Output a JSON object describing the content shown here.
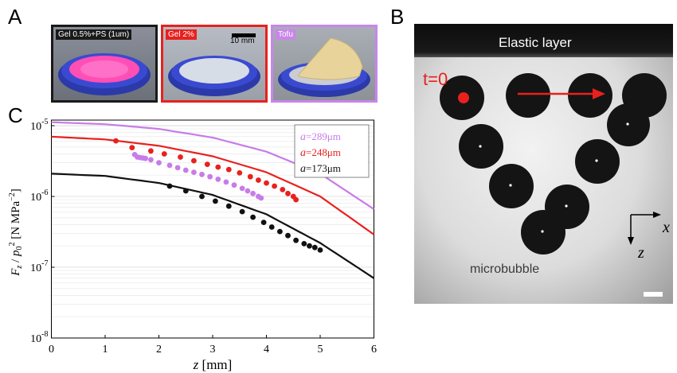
{
  "panels": {
    "a": "A",
    "b": "B",
    "c": "C"
  },
  "photos": [
    {
      "label": "Gel 0.5%+PS (1um)",
      "border": "#1a1a1a",
      "label_bg": "#1a1a1a"
    },
    {
      "label": "Gel 2%",
      "border": "#e8211e",
      "label_bg": "#e8211e",
      "scale": "10 mm"
    },
    {
      "label": "Tofu",
      "border": "#c985ea",
      "label_bg": "#c985ea"
    }
  ],
  "panel_b": {
    "elastic_layer": "Elastic layer",
    "t0": "t=0",
    "microbubble": "microbubble",
    "axis_x": "x",
    "axis_z": "z",
    "marker_color": "#e8211e"
  },
  "chart_data": {
    "type": "scatter",
    "xlabel": "z [mm]",
    "ylabel": "F_z / p_0^2 [N MPa^-2]",
    "xlim": [
      0,
      6
    ],
    "ylim": [
      1e-08,
      1.2e-05
    ],
    "yscale": "log",
    "xticks": [
      "0",
      "1",
      "2",
      "3",
      "4",
      "5",
      "6"
    ],
    "yticks": [
      "10-8",
      "10-7",
      "10-6",
      "10-5"
    ],
    "grid": "y-minor",
    "legend_position": "top-right",
    "series": [
      {
        "name": "a=289μm",
        "legend_label": "a",
        "legend_value": "=289μm",
        "color": "#c77ce8",
        "curve": [
          [
            0,
            1.12e-05
          ],
          [
            1,
            1.05e-05
          ],
          [
            2,
            9e-06
          ],
          [
            3,
            6.8e-06
          ],
          [
            4,
            4.3e-06
          ],
          [
            5,
            2.1e-06
          ],
          [
            6,
            6.6e-07
          ]
        ],
        "points": [
          [
            1.55,
            3.9e-06
          ],
          [
            1.6,
            3.6e-06
          ],
          [
            1.65,
            3.55e-06
          ],
          [
            1.7,
            3.5e-06
          ],
          [
            1.75,
            3.45e-06
          ],
          [
            1.85,
            3.3e-06
          ],
          [
            2.0,
            3e-06
          ],
          [
            2.2,
            2.75e-06
          ],
          [
            2.35,
            2.55e-06
          ],
          [
            2.5,
            2.35e-06
          ],
          [
            2.65,
            2.2e-06
          ],
          [
            2.8,
            2.05e-06
          ],
          [
            2.95,
            1.9e-06
          ],
          [
            3.1,
            1.75e-06
          ],
          [
            3.25,
            1.6e-06
          ],
          [
            3.4,
            1.45e-06
          ],
          [
            3.55,
            1.3e-06
          ],
          [
            3.65,
            1.2e-06
          ],
          [
            3.75,
            1.1e-06
          ],
          [
            3.85,
            1e-06
          ],
          [
            3.9,
            9.5e-07
          ]
        ]
      },
      {
        "name": "a=248μm",
        "legend_label": "a",
        "legend_value": "=248μm",
        "color": "#e8211e",
        "curve": [
          [
            0,
            7e-06
          ],
          [
            1,
            6.4e-06
          ],
          [
            2,
            5.2e-06
          ],
          [
            3,
            3.7e-06
          ],
          [
            4,
            2.2e-06
          ],
          [
            5,
            1e-06
          ],
          [
            6,
            2.9e-07
          ]
        ],
        "points": [
          [
            1.2,
            6.1e-06
          ],
          [
            1.5,
            4.9e-06
          ],
          [
            1.85,
            4.4e-06
          ],
          [
            2.1,
            4e-06
          ],
          [
            2.4,
            3.6e-06
          ],
          [
            2.65,
            3.2e-06
          ],
          [
            2.9,
            2.85e-06
          ],
          [
            3.1,
            2.6e-06
          ],
          [
            3.3,
            2.4e-06
          ],
          [
            3.5,
            2.15e-06
          ],
          [
            3.7,
            1.9e-06
          ],
          [
            3.85,
            1.7e-06
          ],
          [
            4.0,
            1.55e-06
          ],
          [
            4.15,
            1.4e-06
          ],
          [
            4.3,
            1.25e-06
          ],
          [
            4.4,
            1.1e-06
          ],
          [
            4.5,
            1e-06
          ],
          [
            4.55,
            9e-07
          ]
        ]
      },
      {
        "name": "a=173μm",
        "legend_label": "a",
        "legend_value": "=173μm",
        "color": "#111111",
        "curve": [
          [
            0,
            2.1e-06
          ],
          [
            1,
            1.95e-06
          ],
          [
            2,
            1.55e-06
          ],
          [
            3,
            1.05e-06
          ],
          [
            4,
            5.6e-07
          ],
          [
            5,
            2.2e-07
          ],
          [
            6,
            7e-08
          ]
        ],
        "points": [
          [
            2.2,
            1.4e-06
          ],
          [
            2.5,
            1.2e-06
          ],
          [
            2.8,
            1e-06
          ],
          [
            3.05,
            8.6e-07
          ],
          [
            3.3,
            7.3e-07
          ],
          [
            3.55,
            6.1e-07
          ],
          [
            3.75,
            5.1e-07
          ],
          [
            3.95,
            4.3e-07
          ],
          [
            4.1,
            3.7e-07
          ],
          [
            4.25,
            3.2e-07
          ],
          [
            4.4,
            2.8e-07
          ],
          [
            4.55,
            2.4e-07
          ],
          [
            4.7,
            2.15e-07
          ],
          [
            4.8,
            2e-07
          ],
          [
            4.9,
            1.9e-07
          ],
          [
            5.0,
            1.75e-07
          ]
        ]
      }
    ]
  }
}
